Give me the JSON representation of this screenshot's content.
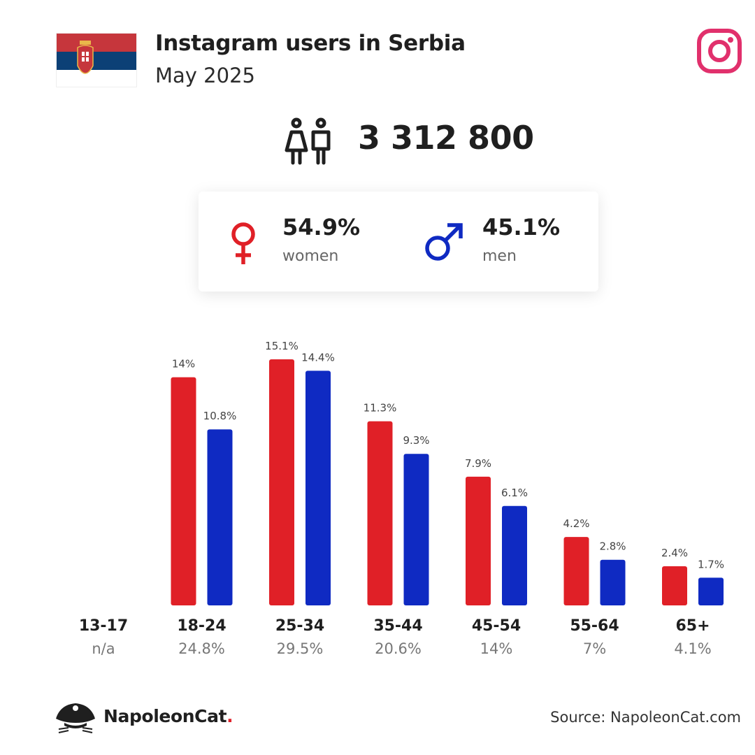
{
  "header": {
    "title": "Instagram users in Serbia",
    "subtitle": "May 2025"
  },
  "summary": {
    "total_users": "3 312 800",
    "women_pct": "54.9%",
    "women_label": "women",
    "men_pct": "45.1%",
    "men_label": "men"
  },
  "colors": {
    "women": "#e02027",
    "men": "#0f2ac2",
    "instagram": "#e1306c",
    "flag_red": "#c6363c",
    "flag_blue": "#0c4076",
    "flag_white": "#ffffff"
  },
  "chart_data": {
    "type": "bar",
    "categories": [
      "13-17",
      "18-24",
      "25-34",
      "35-44",
      "45-54",
      "55-64",
      "65+"
    ],
    "category_totals": [
      "n/a",
      "24.8%",
      "29.5%",
      "20.6%",
      "14%",
      "7%",
      "4.1%"
    ],
    "series": [
      {
        "values": [
          null,
          14,
          15.1,
          11.3,
          7.9,
          4.2,
          2.4
        ],
        "labels": [
          "",
          "14%",
          "15.1%",
          "11.3%",
          "7.9%",
          "4.2%",
          "2.4%"
        ],
        "color": "#e02027"
      },
      {
        "values": [
          null,
          10.8,
          14.4,
          9.3,
          6.1,
          2.8,
          1.7
        ],
        "labels": [
          "",
          "10.8%",
          "14.4%",
          "9.3%",
          "6.1%",
          "2.8%",
          "1.7%"
        ],
        "color": "#0f2ac2"
      }
    ],
    "ylim": [
      0,
      15.1
    ],
    "grid": false
  },
  "footer": {
    "brand": "NapoleonCat",
    "brand_dot": ".",
    "source": "Source: NapoleonCat.com"
  }
}
